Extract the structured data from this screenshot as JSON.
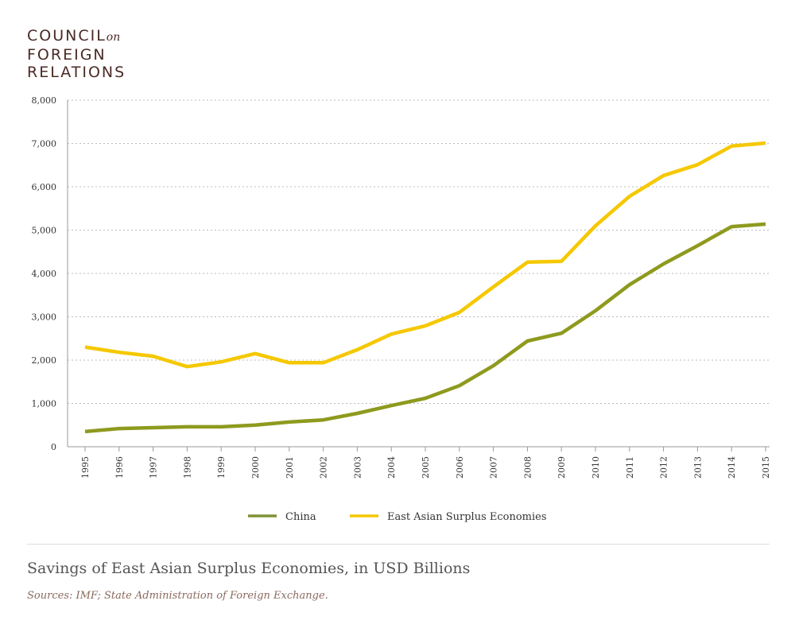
{
  "logo": {
    "line1": "COUNCIL",
    "on": "on",
    "line2": "FOREIGN",
    "line3": "RELATIONS"
  },
  "footer": {
    "title": "Savings of East Asian Surplus Economies, in USD Billions",
    "source": "Sources: IMF; State Administration of Foreign Exchange."
  },
  "chart_data": {
    "type": "line",
    "title": "Savings of East Asian Surplus Economies, in USD Billions",
    "xlabel": "",
    "ylabel": "",
    "ylim": [
      0,
      8000
    ],
    "yticks": [
      0,
      1000,
      2000,
      3000,
      4000,
      5000,
      6000,
      7000,
      8000
    ],
    "ytick_labels": [
      "0",
      "1,000",
      "2,000",
      "3,000",
      "4,000",
      "5,000",
      "6,000",
      "7,000",
      "8,000"
    ],
    "grid": true,
    "legend_position": "bottom",
    "x": [
      "1995",
      "1996",
      "1997",
      "1998",
      "1999",
      "2000",
      "2001",
      "2002",
      "2003",
      "2004",
      "2005",
      "2006",
      "2007",
      "2008",
      "2009",
      "2010",
      "2011",
      "2012",
      "2013",
      "2014",
      "2015"
    ],
    "series": [
      {
        "name": "China",
        "color": "#8e9a1e",
        "legend_color": "#7f9236",
        "values": [
          350,
          420,
          440,
          460,
          460,
          500,
          570,
          620,
          770,
          950,
          1120,
          1410,
          1870,
          2440,
          2620,
          3140,
          3740,
          4220,
          4640,
          5080,
          5140
        ]
      },
      {
        "name": "East Asian Surplus Economies",
        "color": "#f5c800",
        "legend_color": "#f5c800",
        "values": [
          2300,
          2180,
          2090,
          1850,
          1960,
          2150,
          1940,
          1940,
          2240,
          2600,
          2790,
          3100,
          3690,
          4260,
          4280,
          5100,
          5780,
          6260,
          6510,
          6940,
          7010
        ]
      }
    ]
  }
}
